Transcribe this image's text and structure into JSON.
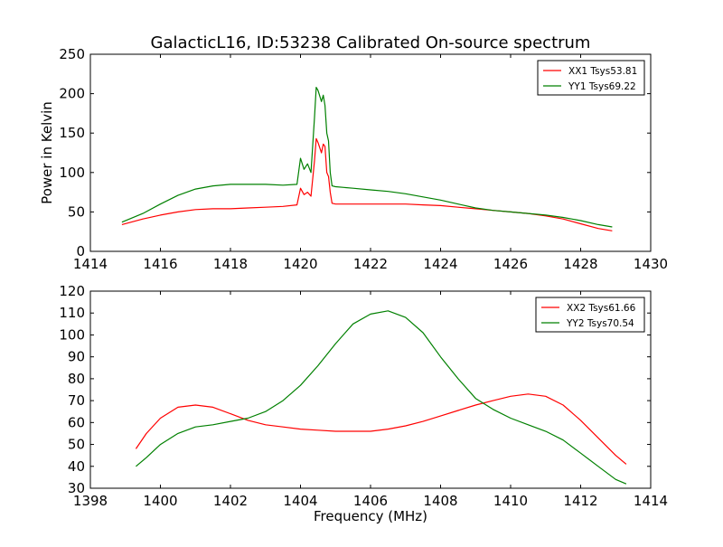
{
  "figure": {
    "title": "GalacticL16, ID:53238 Calibrated On-source spectrum"
  },
  "chart_data": [
    {
      "type": "line",
      "title": "GalacticL16, ID:53238 Calibrated On-source spectrum",
      "xlabel": "",
      "ylabel": "Power in Kelvin",
      "xlim": [
        1414,
        1430
      ],
      "ylim": [
        0,
        250
      ],
      "xticks": [
        1414,
        1416,
        1418,
        1420,
        1422,
        1424,
        1426,
        1428,
        1430
      ],
      "yticks": [
        0,
        50,
        100,
        150,
        200,
        250
      ],
      "grid": false,
      "legend_position": "top-right",
      "series": [
        {
          "name": "XX1 Tsys53.81",
          "color": "#ff0000",
          "x": [
            1414.9,
            1415.5,
            1416.0,
            1416.5,
            1417.0,
            1417.5,
            1418.0,
            1418.5,
            1419.0,
            1419.5,
            1419.9,
            1420.0,
            1420.1,
            1420.2,
            1420.3,
            1420.4,
            1420.45,
            1420.5,
            1420.6,
            1420.65,
            1420.7,
            1420.75,
            1420.8,
            1420.85,
            1420.9,
            1421.0,
            1421.5,
            1422.0,
            1422.5,
            1423.0,
            1423.5,
            1424.0,
            1424.5,
            1425.0,
            1425.5,
            1426.0,
            1426.5,
            1427.0,
            1427.5,
            1428.0,
            1428.5,
            1428.9
          ],
          "values": [
            34,
            41,
            46,
            50,
            53,
            54,
            54,
            55,
            56,
            57,
            59,
            80,
            72,
            75,
            70,
            115,
            143,
            138,
            125,
            136,
            133,
            100,
            95,
            75,
            61,
            60,
            60,
            60,
            60,
            60,
            59,
            58,
            56,
            54,
            52,
            50,
            48,
            45,
            41,
            35,
            29,
            26
          ]
        },
        {
          "name": "YY1 Tsys69.22",
          "color": "#008000",
          "x": [
            1414.9,
            1415.5,
            1416.0,
            1416.5,
            1417.0,
            1417.5,
            1418.0,
            1418.5,
            1419.0,
            1419.5,
            1419.9,
            1420.0,
            1420.1,
            1420.2,
            1420.3,
            1420.4,
            1420.45,
            1420.5,
            1420.6,
            1420.65,
            1420.7,
            1420.75,
            1420.8,
            1420.85,
            1420.9,
            1421.0,
            1421.5,
            1422.0,
            1422.5,
            1423.0,
            1423.5,
            1424.0,
            1424.5,
            1425.0,
            1425.5,
            1426.0,
            1426.5,
            1427.0,
            1427.5,
            1428.0,
            1428.5,
            1428.9
          ],
          "values": [
            37,
            48,
            60,
            71,
            79,
            83,
            85,
            85,
            85,
            84,
            85,
            118,
            104,
            111,
            100,
            170,
            208,
            204,
            190,
            198,
            185,
            150,
            140,
            100,
            83,
            82,
            80,
            78,
            76,
            73,
            69,
            65,
            60,
            55,
            52,
            50,
            48,
            46,
            43,
            39,
            34,
            31
          ]
        }
      ]
    },
    {
      "type": "line",
      "title": "",
      "xlabel": "Frequency (MHz)",
      "ylabel": "",
      "xlim": [
        1398,
        1414
      ],
      "ylim": [
        30,
        120
      ],
      "xticks": [
        1398,
        1400,
        1402,
        1404,
        1406,
        1408,
        1410,
        1412,
        1414
      ],
      "yticks": [
        30,
        40,
        50,
        60,
        70,
        80,
        90,
        100,
        110,
        120
      ],
      "grid": false,
      "legend_position": "top-right",
      "series": [
        {
          "name": "XX2 Tsys61.66",
          "color": "#ff0000",
          "x": [
            1399.3,
            1399.6,
            1400.0,
            1400.5,
            1401.0,
            1401.5,
            1402.0,
            1402.5,
            1403.0,
            1403.5,
            1404.0,
            1404.5,
            1405.0,
            1405.5,
            1406.0,
            1406.5,
            1407.0,
            1407.5,
            1408.0,
            1408.5,
            1409.0,
            1409.5,
            1410.0,
            1410.5,
            1411.0,
            1411.5,
            1412.0,
            1412.5,
            1413.0,
            1413.3
          ],
          "values": [
            48,
            55,
            62,
            67,
            68,
            67,
            64,
            61,
            59,
            58,
            57,
            56.5,
            56,
            56,
            56,
            57,
            58.5,
            60.5,
            63,
            65.5,
            68,
            70,
            72,
            73,
            72,
            68,
            61,
            53,
            45,
            41
          ]
        },
        {
          "name": "YY2 Tsys70.54",
          "color": "#008000",
          "x": [
            1399.3,
            1399.6,
            1400.0,
            1400.5,
            1401.0,
            1401.5,
            1402.0,
            1402.5,
            1403.0,
            1403.5,
            1404.0,
            1404.5,
            1405.0,
            1405.5,
            1406.0,
            1406.5,
            1407.0,
            1407.5,
            1408.0,
            1408.5,
            1409.0,
            1409.5,
            1410.0,
            1410.5,
            1411.0,
            1411.5,
            1412.0,
            1412.5,
            1413.0,
            1413.3
          ],
          "values": [
            40,
            44,
            50,
            55,
            58,
            59,
            60.5,
            62,
            65,
            70,
            77,
            86,
            96,
            105,
            109.5,
            111,
            108,
            101,
            90,
            80,
            71,
            66,
            62,
            59,
            56,
            52,
            46,
            40,
            34,
            32
          ]
        }
      ]
    }
  ]
}
